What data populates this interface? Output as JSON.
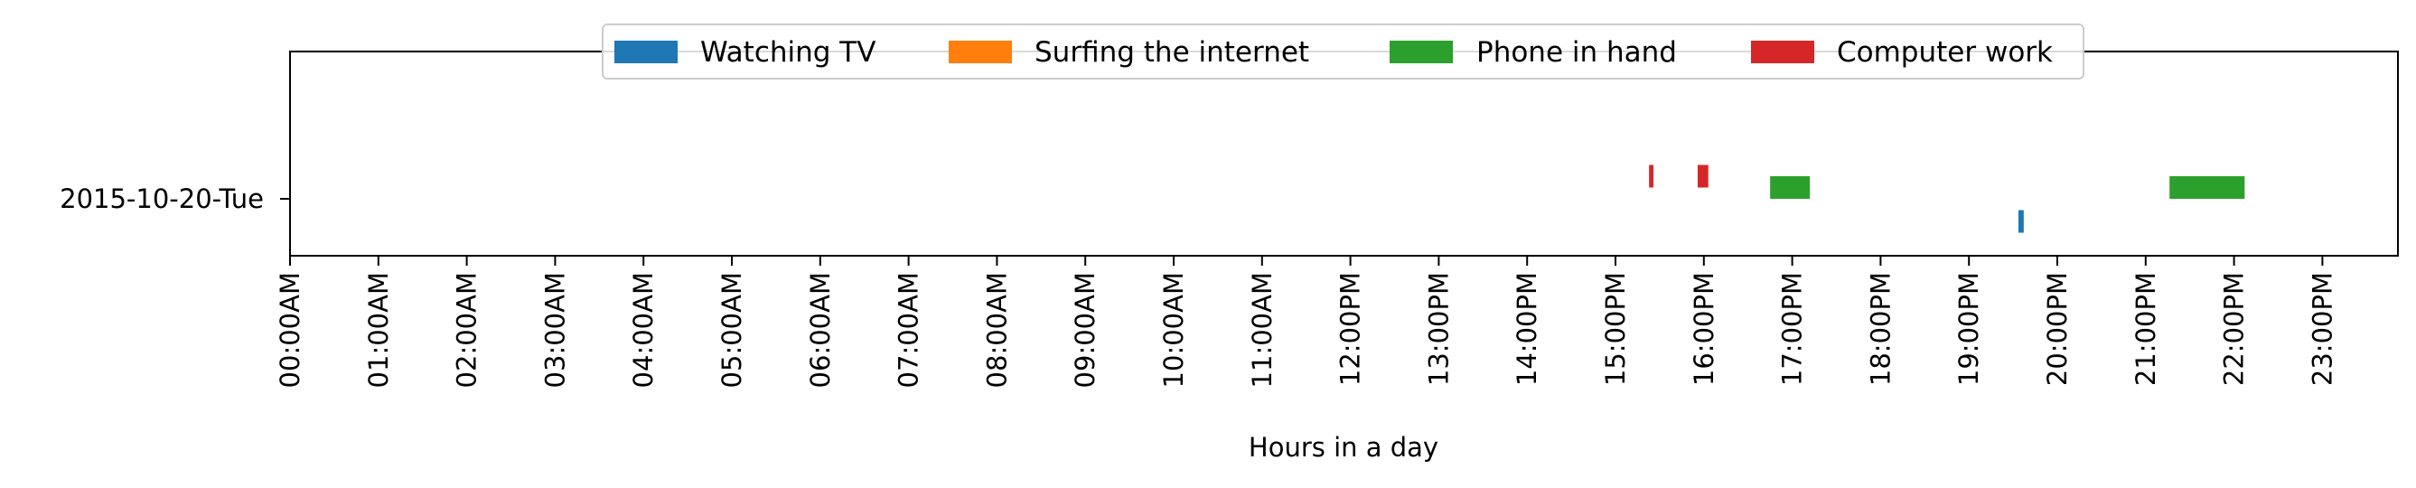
{
  "chart_data": {
    "type": "timeline",
    "title": "",
    "xlabel": "Hours in a day",
    "ylabel": "",
    "xlim": [
      0,
      24
    ],
    "x_ticks": [
      "00:00AM",
      "01:00AM",
      "02:00AM",
      "03:00AM",
      "04:00AM",
      "05:00AM",
      "06:00AM",
      "07:00AM",
      "08:00AM",
      "09:00AM",
      "10:00AM",
      "11:00AM",
      "12:00PM",
      "13:00PM",
      "14:00PM",
      "15:00PM",
      "16:00PM",
      "17:00PM",
      "18:00PM",
      "19:00PM",
      "20:00PM",
      "21:00PM",
      "22:00PM",
      "23:00PM"
    ],
    "categories": [
      "2015-10-20-Tue"
    ],
    "legend_position": "top-center",
    "grid": false,
    "series": [
      {
        "name": "Watching TV",
        "color": "#1f77b4",
        "lane": -1,
        "intervals": [
          [
            19.56,
            19.62
          ]
        ]
      },
      {
        "name": "Surfing the internet",
        "color": "#ff7f0e",
        "lane": 0,
        "intervals": []
      },
      {
        "name": "Phone in hand",
        "color": "#2ca02c",
        "lane": 0.5,
        "intervals": [
          [
            16.75,
            17.2
          ],
          [
            21.27,
            22.12
          ]
        ]
      },
      {
        "name": "Computer work",
        "color": "#d62728",
        "lane": 1,
        "intervals": [
          [
            15.38,
            15.43
          ],
          [
            15.93,
            16.05
          ]
        ]
      }
    ]
  }
}
